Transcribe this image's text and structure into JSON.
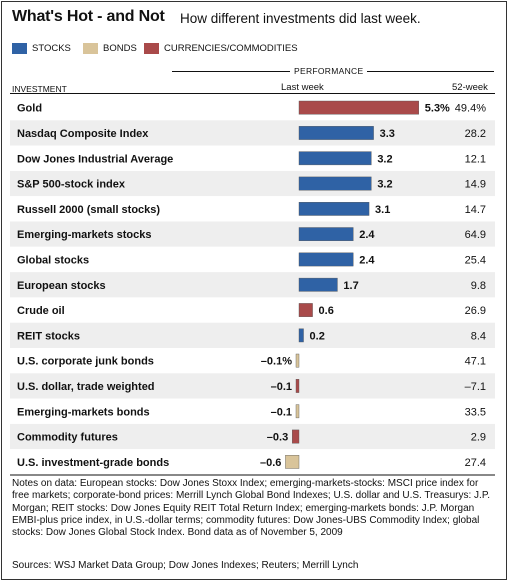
{
  "title": "What's Hot - and Not",
  "subtitle": "How different investments did last week.",
  "legend": [
    {
      "label": "STOCKS",
      "color": "#2f62a5"
    },
    {
      "label": "BONDS",
      "color": "#d9c49a"
    },
    {
      "label": "CURRENCIES/COMMODITIES",
      "color": "#a94a4a"
    }
  ],
  "header": {
    "performance": "PERFORMANCE",
    "investment": "INVESTMENT",
    "last_week": "Last week",
    "week52": "52-week"
  },
  "chart_data": {
    "type": "bar",
    "orientation": "horizontal",
    "xlim": [
      -0.6,
      5.3
    ],
    "categories": [
      "Gold",
      "Nasdaq Composite Index",
      "Dow Jones Industrial Average",
      "S&P 500-stock index",
      "Russell 2000 (small stocks)",
      "Emerging-markets stocks",
      "Global stocks",
      "European stocks",
      "Crude oil",
      "REIT stocks",
      "U.S. corporate junk bonds",
      "U.S. dollar, trade weighted",
      "Emerging-markets bonds",
      "Commodity futures",
      "U.S. investment-grade bonds"
    ],
    "values": [
      5.3,
      3.3,
      3.2,
      3.2,
      3.1,
      2.4,
      2.4,
      1.7,
      0.6,
      0.2,
      -0.1,
      -0.1,
      -0.1,
      -0.3,
      -0.6
    ],
    "value_labels": [
      "5.3%",
      "3.3",
      "3.2",
      "3.2",
      "3.1",
      "2.4",
      "2.4",
      "1.7",
      "0.6",
      "0.2",
      "–0.1%",
      "–0.1",
      "–0.1",
      "–0.3",
      "–0.6"
    ],
    "classes": [
      "commodity",
      "stock",
      "stock",
      "stock",
      "stock",
      "stock",
      "stock",
      "stock",
      "commodity",
      "stock",
      "bond",
      "commodity",
      "bond",
      "commodity",
      "bond"
    ],
    "week52_labels": [
      "49.4%",
      "28.2",
      "12.1",
      "14.9",
      "14.7",
      "64.9",
      "25.4",
      "9.8",
      "26.9",
      "8.4",
      "47.1",
      "–7.1",
      "33.5",
      "2.9",
      "27.4"
    ],
    "class_colors": {
      "stock": "#2f62a5",
      "bond": "#d9c49a",
      "commodity": "#a94a4a"
    }
  },
  "notes": "Notes on data: European stocks: Dow Jones Stoxx Index; emerging-markets-stocks: MSCI price index for free markets; corporate-bond prices: Merrill Lynch Global Bond Indexes; U.S. dollar and U.S. Treasurys: J.P. Morgan; REIT stocks: Dow Jones Equity REIT Total Return Index; emerging-markets bonds: J.P. Morgan EMBI-plus price index, in U.S.-dollar terms; commodity futures: Dow Jones-UBS Commodity Index; global stocks: Dow Jones Global Stock Index.  Bond data as of November 5, 2009",
  "sources": "Sources: WSJ Market Data Group; Dow Jones Indexes; Reuters; Merrill Lynch"
}
